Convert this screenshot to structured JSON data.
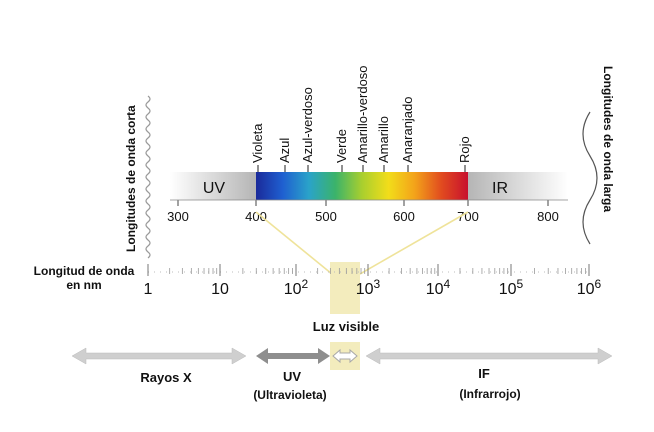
{
  "left_vertical_label": "Longitudes de onda corta",
  "right_vertical_label": "Longitudes de onda larga",
  "spectrum_band": {
    "uv_label": "UV",
    "ir_label": "IR",
    "colors": [
      "#1a2a9a",
      "#1f5fd0",
      "#2aa3c9",
      "#3bb36a",
      "#a9cf2e",
      "#f2dd1a",
      "#f3a21a",
      "#e14b1f",
      "#c8102e"
    ]
  },
  "color_names": [
    "Violeta",
    "Azul",
    "Azul-verdoso",
    "Verde",
    "Amarillo-verdoso",
    "Amarillo",
    "Anaranjado",
    "Rojo"
  ],
  "nm_scale": {
    "ticks": [
      "300",
      "400",
      "500",
      "600",
      "700",
      "800"
    ]
  },
  "log_axis": {
    "title_line1": "Longitud de onda",
    "title_line2": "en nm",
    "ticks": [
      {
        "base": "1",
        "exp": ""
      },
      {
        "base": "10",
        "exp": ""
      },
      {
        "base": "10",
        "exp": "2"
      },
      {
        "base": "10",
        "exp": "3"
      },
      {
        "base": "10",
        "exp": "4"
      },
      {
        "base": "10",
        "exp": "5"
      },
      {
        "base": "10",
        "exp": "6"
      }
    ]
  },
  "visible_light_label": "Luz visible",
  "ranges": {
    "xray_label": "Rayos X",
    "uv_label": "UV",
    "uv_sublabel": "(Ultravioleta)",
    "if_label": "IF",
    "if_sublabel": "(Infrarrojo)"
  },
  "colors": {
    "uv_sublabel": "#4a2a7a",
    "if_sublabel": "#8a1a4a",
    "highlight": "#f3ecbd",
    "connector": "#f0e6a8",
    "grey_arrow": "#c9c9c9",
    "dark_grey_arrow": "#8e8e8e"
  }
}
